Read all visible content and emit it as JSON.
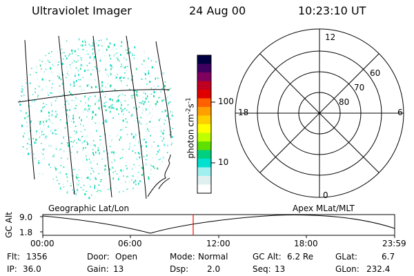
{
  "header": {
    "title": "Ultraviolet Imager",
    "date": "24 Aug 00",
    "time": "10:23:10 UT"
  },
  "colorbar": {
    "unit_label": "photon cm",
    "unit_exp1": "-2",
    "unit_mid": "s",
    "unit_exp2": "-1",
    "tick_100": "100",
    "tick_10": "10",
    "colors": [
      "#000040",
      "#400060",
      "#800060",
      "#c00020",
      "#e00000",
      "#ff6000",
      "#ffa000",
      "#ffd000",
      "#ffff00",
      "#c0ff00",
      "#60e000",
      "#00d080",
      "#00e0d0",
      "#a0f0f0",
      "#e0f0f0",
      "#ffffff"
    ]
  },
  "polar_plot": {
    "labels": {
      "noon": "12",
      "midnight": "0",
      "dusk": "18",
      "dawn": "6",
      "lat_60": "60",
      "lat_70": "70",
      "lat_80": "80"
    }
  },
  "plot_titles": {
    "left": "Geographic Lat/Lon",
    "right": "Apex MLat/MLT"
  },
  "timeline": {
    "ylabel": "GC Alt",
    "y_ticks": [
      "9.0",
      "1.8"
    ],
    "x_ticks": [
      "00:00",
      "06:00",
      "12:00",
      "18:00",
      "23:59"
    ],
    "marker_color": "#ff0000"
  },
  "info": {
    "flt_label": "Flt:",
    "flt_value": "1356",
    "ip_label": "IP:",
    "ip_value": "36.0",
    "door_label": "Door:",
    "door_value": "Open",
    "gain_label": "Gain:",
    "gain_value": "13",
    "mode_label": "Mode:",
    "mode_value": "Normal",
    "dsp_label": "Dsp:",
    "dsp_value": "2.0",
    "gcalt_label": "GC Alt:",
    "gcalt_value": "6.2 Re",
    "seq_label": "Seq:",
    "seq_value": "13",
    "glat_label": "GLat:",
    "glat_value": "6.7",
    "glon_label": "GLon:",
    "glon_value": "232.4"
  }
}
